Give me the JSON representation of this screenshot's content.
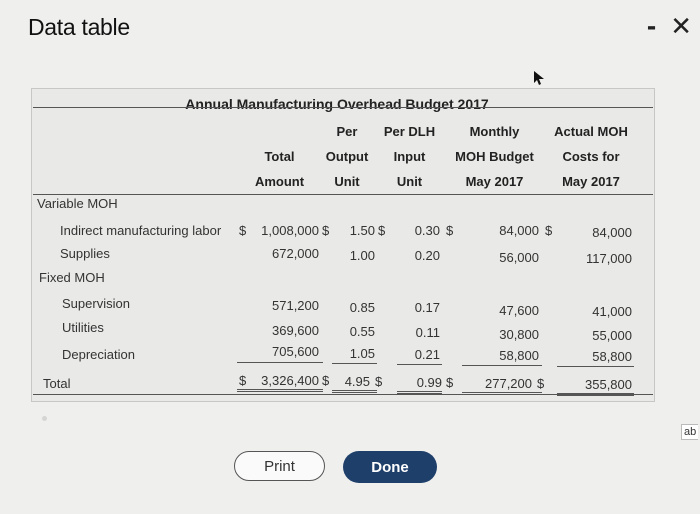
{
  "window": {
    "title": "Data table",
    "minimize_label": "-",
    "close_label": "✕",
    "side_label": "ab"
  },
  "table": {
    "title": "Annual Manufacturing Overhead Budget 2017",
    "columns": [
      {
        "lines": [
          "",
          "Total",
          "Amount"
        ]
      },
      {
        "lines": [
          "Per",
          "Output",
          "Unit"
        ]
      },
      {
        "lines": [
          "Per DLH",
          "Input",
          "Unit"
        ]
      },
      {
        "lines": [
          "Monthly",
          "MOH Budget",
          "May 2017"
        ]
      },
      {
        "lines": [
          "Actual MOH",
          "Costs for",
          "May 2017"
        ]
      }
    ],
    "sections": {
      "variable": "Variable MOH",
      "fixed": "Fixed MOH",
      "total": "Total"
    },
    "rows": [
      {
        "label": "Indirect manufacturing labor",
        "values": [
          "1,008,000",
          "1.50",
          "0.30",
          "84,000",
          "84,000"
        ]
      },
      {
        "label": "Supplies",
        "values": [
          "672,000",
          "1.00",
          "0.20",
          "56,000",
          "117,000"
        ]
      },
      {
        "label": "Supervision",
        "values": [
          "571,200",
          "0.85",
          "0.17",
          "47,600",
          "41,000"
        ]
      },
      {
        "label": "Utilities",
        "values": [
          "369,600",
          "0.55",
          "0.11",
          "30,800",
          "55,000"
        ]
      },
      {
        "label": "Depreciation",
        "values": [
          "705,600",
          "1.05",
          "0.21",
          "58,800",
          "58,800"
        ]
      }
    ],
    "total_values": [
      "3,326,400",
      "4.95",
      "0.99",
      "277,200",
      "355,800"
    ],
    "currency_symbol": "$"
  },
  "buttons": {
    "print": "Print",
    "done": "Done"
  }
}
